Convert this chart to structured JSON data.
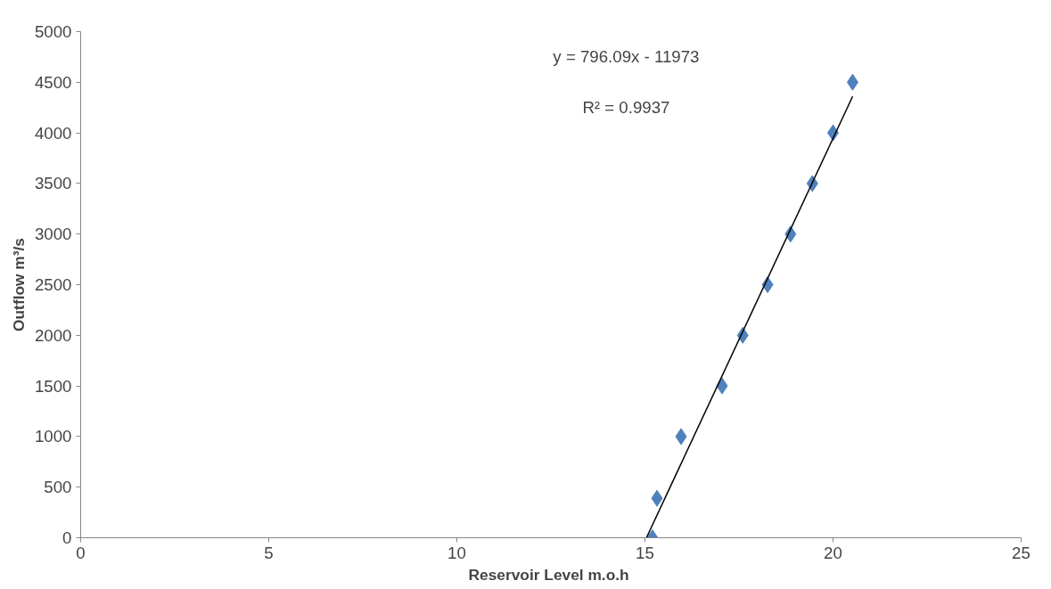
{
  "chart_data": {
    "type": "scatter",
    "xlabel": "Reservoir Level  m.o.h",
    "ylabel": "Outflow m³/s",
    "xlim": [
      0,
      25
    ],
    "xticks": [
      0,
      5,
      10,
      15,
      20,
      25
    ],
    "ylim": [
      0,
      5000
    ],
    "yticks": [
      0,
      500,
      1000,
      1500,
      2000,
      2500,
      3000,
      3500,
      4000,
      4500,
      5000
    ],
    "grid": false,
    "marker": "diamond",
    "series": [
      {
        "color": "#4f81bd",
        "x": [
          15.2,
          15.32,
          15.96,
          17.05,
          17.6,
          18.26,
          18.87,
          19.45,
          20.0,
          20.52
        ],
        "values": [
          0,
          390,
          1000,
          1500,
          2000,
          2500,
          3000,
          3500,
          4000,
          4500
        ]
      },
      {
        "type": "line",
        "marker": "none",
        "color": "#000000",
        "x": [
          15.04,
          20.52
        ],
        "values": [
          0,
          4360
        ]
      }
    ],
    "annotations": [
      "y = 796.09x - 11973",
      "R² = 0.9937"
    ]
  }
}
